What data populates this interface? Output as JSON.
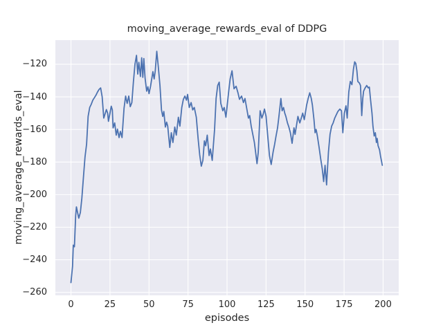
{
  "figure": {
    "title": "moving_average_rewards_eval of DDPG",
    "xlabel": "episodes",
    "ylabel": "moving_average_rewards_eval",
    "colors": {
      "figure_bg": "#ffffff",
      "axes_bg": "#eaeaf2",
      "grid": "#ffffff",
      "line": "#4c72b0",
      "text": "#262626"
    }
  },
  "chart_data": {
    "type": "line",
    "title": "moving_average_rewards_eval of DDPG",
    "xlabel": "episodes",
    "ylabel": "moving_average_rewards_eval",
    "grid": true,
    "legend_position": "none",
    "x_ticks": [
      0,
      25,
      50,
      75,
      100,
      125,
      150,
      175,
      200
    ],
    "y_ticks": [
      -120,
      -140,
      -160,
      -180,
      -200,
      -220,
      -240,
      -260
    ],
    "xlim": [
      -10,
      210
    ],
    "ylim": [
      -261.9,
      -105
    ],
    "series": [
      {
        "name": "moving_average_rewards_eval",
        "color": "#4c72b0",
        "points": [
          [
            0,
            -254
          ],
          [
            1,
            -244
          ],
          [
            1.5,
            -231
          ],
          [
            2.2,
            -232
          ],
          [
            3,
            -213
          ],
          [
            3.5,
            -207.5
          ],
          [
            4,
            -210
          ],
          [
            5,
            -214.5
          ],
          [
            6,
            -211
          ],
          [
            7,
            -202
          ],
          [
            8,
            -189
          ],
          [
            9,
            -177
          ],
          [
            10,
            -169
          ],
          [
            11,
            -152
          ],
          [
            12,
            -146.5
          ],
          [
            13,
            -144.5
          ],
          [
            14,
            -142
          ],
          [
            15,
            -140.5
          ],
          [
            16,
            -139
          ],
          [
            17,
            -137
          ],
          [
            18,
            -135.5
          ],
          [
            19,
            -134.5
          ],
          [
            20,
            -140
          ],
          [
            21,
            -153
          ],
          [
            22,
            -150
          ],
          [
            22.7,
            -147.8
          ],
          [
            23.5,
            -150
          ],
          [
            24,
            -155
          ],
          [
            25,
            -150
          ],
          [
            25.8,
            -145.7
          ],
          [
            26.5,
            -148
          ],
          [
            27,
            -159
          ],
          [
            28,
            -156
          ],
          [
            29,
            -163.5
          ],
          [
            29.8,
            -159.8
          ],
          [
            30.8,
            -165
          ],
          [
            31.7,
            -161.2
          ],
          [
            32.7,
            -165
          ],
          [
            34,
            -147
          ],
          [
            35,
            -139.5
          ],
          [
            36,
            -144
          ],
          [
            37,
            -139.5
          ],
          [
            38,
            -146
          ],
          [
            39,
            -143.5
          ],
          [
            40,
            -131
          ],
          [
            41,
            -120
          ],
          [
            42,
            -114.5
          ],
          [
            42.8,
            -126
          ],
          [
            43.5,
            -118.8
          ],
          [
            44.5,
            -127.5
          ],
          [
            45.3,
            -116
          ],
          [
            46,
            -128
          ],
          [
            46.7,
            -116.5
          ],
          [
            47.5,
            -128.5
          ],
          [
            48.5,
            -136.5
          ],
          [
            49.3,
            -133.8
          ],
          [
            50,
            -138
          ],
          [
            51,
            -133.5
          ],
          [
            52.5,
            -124.5
          ],
          [
            53.3,
            -129
          ],
          [
            54,
            -124
          ],
          [
            55,
            -112
          ],
          [
            56,
            -122
          ],
          [
            57,
            -133
          ],
          [
            58,
            -148
          ],
          [
            58.8,
            -152
          ],
          [
            59.5,
            -149
          ],
          [
            60.5,
            -158.5
          ],
          [
            61.3,
            -155.5
          ],
          [
            62,
            -158
          ],
          [
            63.3,
            -171
          ],
          [
            64.3,
            -162
          ],
          [
            65.3,
            -168
          ],
          [
            66.5,
            -158.5
          ],
          [
            67.5,
            -163.5
          ],
          [
            68.8,
            -152.5
          ],
          [
            69.8,
            -158
          ],
          [
            71,
            -146.5
          ],
          [
            72,
            -141.5
          ],
          [
            73,
            -139.5
          ],
          [
            74,
            -142
          ],
          [
            74.7,
            -138.5
          ],
          [
            75.8,
            -146.5
          ],
          [
            77,
            -143.5
          ],
          [
            78,
            -148
          ],
          [
            79,
            -146.5
          ],
          [
            80.3,
            -152.5
          ],
          [
            81.5,
            -166
          ],
          [
            82.5,
            -175.5
          ],
          [
            83.5,
            -182.5
          ],
          [
            84.5,
            -179
          ],
          [
            85.5,
            -167
          ],
          [
            86.3,
            -170
          ],
          [
            87.3,
            -163.5
          ],
          [
            88.5,
            -176
          ],
          [
            89.3,
            -172
          ],
          [
            90.5,
            -179
          ],
          [
            92,
            -160
          ],
          [
            93,
            -141
          ],
          [
            94,
            -133
          ],
          [
            95,
            -131
          ],
          [
            96,
            -144
          ],
          [
            97.3,
            -148.5
          ],
          [
            98.2,
            -146.5
          ],
          [
            99.3,
            -152.5
          ],
          [
            101,
            -137
          ],
          [
            102,
            -129
          ],
          [
            103.2,
            -124
          ],
          [
            104.5,
            -135
          ],
          [
            105.8,
            -133.5
          ],
          [
            107,
            -137.5
          ],
          [
            108,
            -141.5
          ],
          [
            109.3,
            -139.5
          ],
          [
            110.5,
            -143.5
          ],
          [
            111.5,
            -141
          ],
          [
            112.5,
            -146.5
          ],
          [
            113.7,
            -153
          ],
          [
            114.5,
            -151.5
          ],
          [
            115.5,
            -158
          ],
          [
            116.5,
            -163
          ],
          [
            117.5,
            -168
          ],
          [
            118.3,
            -174
          ],
          [
            119.2,
            -181
          ],
          [
            120,
            -174
          ],
          [
            121.2,
            -148.5
          ],
          [
            122.3,
            -153
          ],
          [
            123.2,
            -150.5
          ],
          [
            124,
            -147.5
          ],
          [
            125,
            -152
          ],
          [
            126,
            -163
          ],
          [
            127.2,
            -176
          ],
          [
            128.3,
            -181.5
          ],
          [
            129.5,
            -174
          ],
          [
            130.5,
            -169
          ],
          [
            131.4,
            -164
          ],
          [
            132.4,
            -159
          ],
          [
            133.3,
            -151.5
          ],
          [
            134.5,
            -141
          ],
          [
            135.3,
            -148.5
          ],
          [
            136.2,
            -146.5
          ],
          [
            137,
            -150
          ],
          [
            137.7,
            -152
          ],
          [
            138.7,
            -156
          ],
          [
            139.6,
            -158.5
          ],
          [
            140.6,
            -162
          ],
          [
            141.7,
            -168.5
          ],
          [
            142.9,
            -159
          ],
          [
            143.6,
            -163
          ],
          [
            145.4,
            -152
          ],
          [
            146.6,
            -156
          ],
          [
            147.6,
            -153
          ],
          [
            148.5,
            -150
          ],
          [
            149.5,
            -154
          ],
          [
            151,
            -145
          ],
          [
            152,
            -141
          ],
          [
            153,
            -137.5
          ],
          [
            154,
            -141
          ],
          [
            154.7,
            -145
          ],
          [
            155.7,
            -154
          ],
          [
            156.4,
            -162
          ],
          [
            157.1,
            -160
          ],
          [
            157.9,
            -164
          ],
          [
            159,
            -171
          ],
          [
            160,
            -178
          ],
          [
            161,
            -184
          ],
          [
            161.9,
            -192
          ],
          [
            162.8,
            -182
          ],
          [
            163.8,
            -194
          ],
          [
            165,
            -174
          ],
          [
            166,
            -163
          ],
          [
            167,
            -158
          ],
          [
            168,
            -156
          ],
          [
            169,
            -153
          ],
          [
            170,
            -151
          ],
          [
            171,
            -149
          ],
          [
            172.3,
            -147.5
          ],
          [
            173.3,
            -148.5
          ],
          [
            174.2,
            -162
          ],
          [
            175.2,
            -150
          ],
          [
            176.2,
            -145.5
          ],
          [
            177,
            -153
          ],
          [
            178,
            -137
          ],
          [
            179,
            -130.5
          ],
          [
            180,
            -132.5
          ],
          [
            181,
            -123
          ],
          [
            181.8,
            -118.5
          ],
          [
            182.5,
            -119.5
          ],
          [
            183.2,
            -124
          ],
          [
            183.8,
            -130.5
          ],
          [
            184.8,
            -131.5
          ],
          [
            185.5,
            -133
          ],
          [
            186.3,
            -151.5
          ],
          [
            187,
            -141
          ],
          [
            187.5,
            -136.5
          ],
          [
            188.5,
            -134.5
          ],
          [
            189.5,
            -133
          ],
          [
            190.5,
            -134.5
          ],
          [
            191.2,
            -134
          ],
          [
            192,
            -142
          ],
          [
            192.9,
            -150
          ],
          [
            193.5,
            -158
          ],
          [
            194.3,
            -164
          ],
          [
            195,
            -162
          ],
          [
            195.7,
            -168
          ],
          [
            196.2,
            -165.5
          ],
          [
            196.8,
            -170
          ],
          [
            197.7,
            -172.5
          ],
          [
            198.4,
            -176.5
          ],
          [
            199.5,
            -182
          ]
        ]
      }
    ]
  }
}
